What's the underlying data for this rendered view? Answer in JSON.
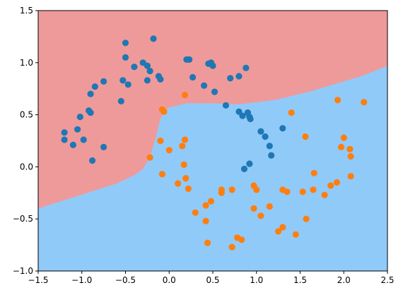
{
  "chart_data": {
    "type": "scatter",
    "title": "",
    "xlabel": "",
    "ylabel": "",
    "xlim": [
      -1.5,
      2.5
    ],
    "ylim": [
      -1.0,
      1.5
    ],
    "grid": false,
    "legend": "none",
    "xticks": [
      -1.5,
      -1.0,
      -0.5,
      0.0,
      0.5,
      1.0,
      1.5,
      2.0,
      2.5
    ],
    "yticks": [
      -1.0,
      -0.5,
      0.0,
      0.5,
      1.0,
      1.5
    ],
    "xtick_labels": [
      "−1.5",
      "−1.0",
      "−0.5",
      "0.0",
      "0.5",
      "1.0",
      "1.5",
      "2.0",
      "2.5"
    ],
    "ytick_labels": [
      "−1.0",
      "−0.5",
      "0.0",
      "0.5",
      "1.0",
      "1.5"
    ],
    "decision_regions": {
      "colors": {
        "upper": "#ef9a9a",
        "lower": "#90caf9"
      },
      "boundary": [
        [
          -1.5,
          -0.4
        ],
        [
          -1.2,
          -0.32
        ],
        [
          -0.9,
          -0.24
        ],
        [
          -0.6,
          -0.16
        ],
        [
          -0.4,
          -0.08
        ],
        [
          -0.3,
          -0.02
        ],
        [
          -0.25,
          0.05
        ],
        [
          -0.2,
          0.15
        ],
        [
          -0.15,
          0.29
        ],
        [
          -0.1,
          0.46
        ],
        [
          -0.05,
          0.54
        ],
        [
          0.0,
          0.57
        ],
        [
          0.1,
          0.59
        ],
        [
          0.2,
          0.61
        ],
        [
          0.3,
          0.61
        ],
        [
          0.5,
          0.61
        ],
        [
          0.8,
          0.6
        ],
        [
          1.0,
          0.62
        ],
        [
          1.2,
          0.64
        ],
        [
          1.4,
          0.68
        ],
        [
          1.6,
          0.72
        ],
        [
          1.8,
          0.77
        ],
        [
          2.0,
          0.82
        ],
        [
          2.2,
          0.87
        ],
        [
          2.5,
          0.97
        ]
      ]
    },
    "series": [
      {
        "color": "#1f77b4",
        "points": [
          [
            -1.2,
            0.33
          ],
          [
            -1.2,
            0.26
          ],
          [
            -1.1,
            0.21
          ],
          [
            -1.05,
            0.36
          ],
          [
            -1.02,
            0.48
          ],
          [
            -0.98,
            0.26
          ],
          [
            -0.92,
            0.54
          ],
          [
            -0.9,
            0.52
          ],
          [
            -0.88,
            0.06
          ],
          [
            -0.9,
            0.7
          ],
          [
            -0.85,
            0.77
          ],
          [
            -0.75,
            0.19
          ],
          [
            -0.75,
            0.82
          ],
          [
            -0.55,
            0.63
          ],
          [
            -0.53,
            0.83
          ],
          [
            -0.5,
            1.19
          ],
          [
            -0.5,
            1.05
          ],
          [
            -0.47,
            0.79
          ],
          [
            -0.4,
            0.96
          ],
          [
            -0.3,
            1.0
          ],
          [
            -0.25,
            0.97
          ],
          [
            -0.25,
            0.83
          ],
          [
            -0.22,
            0.92
          ],
          [
            -0.18,
            1.23
          ],
          [
            -0.12,
            0.87
          ],
          [
            -0.1,
            0.84
          ],
          [
            0.2,
            1.03
          ],
          [
            0.23,
            1.03
          ],
          [
            0.27,
            0.86
          ],
          [
            0.4,
            0.78
          ],
          [
            0.45,
            0.99
          ],
          [
            0.48,
            1.0
          ],
          [
            0.5,
            0.97
          ],
          [
            0.52,
            0.72
          ],
          [
            0.65,
            0.59
          ],
          [
            0.7,
            0.85
          ],
          [
            0.8,
            0.87
          ],
          [
            0.8,
            0.53
          ],
          [
            0.84,
            0.49
          ],
          [
            0.88,
            0.95
          ],
          [
            0.9,
            0.52
          ],
          [
            0.92,
            0.48
          ],
          [
            0.93,
            0.46
          ],
          [
            0.86,
            -0.02
          ],
          [
            0.92,
            0.03
          ],
          [
            1.05,
            0.34
          ],
          [
            1.1,
            0.29
          ],
          [
            1.15,
            0.2
          ],
          [
            1.17,
            0.11
          ],
          [
            1.3,
            0.37
          ]
        ]
      },
      {
        "color": "#ff7f0e",
        "points": [
          [
            0.18,
            0.69
          ],
          [
            -0.08,
            0.55
          ],
          [
            -0.06,
            0.53
          ],
          [
            -0.1,
            0.25
          ],
          [
            -0.08,
            -0.07
          ],
          [
            -0.22,
            0.09
          ],
          [
            0.0,
            0.16
          ],
          [
            0.1,
            -0.16
          ],
          [
            0.15,
            0.2
          ],
          [
            0.18,
            0.26
          ],
          [
            0.17,
            0.02
          ],
          [
            0.19,
            -0.11
          ],
          [
            0.22,
            -0.21
          ],
          [
            0.3,
            -0.44
          ],
          [
            0.42,
            -0.37
          ],
          [
            0.42,
            -0.52
          ],
          [
            0.44,
            -0.73
          ],
          [
            0.48,
            -0.33
          ],
          [
            0.6,
            -0.25
          ],
          [
            0.6,
            -0.22
          ],
          [
            0.72,
            -0.22
          ],
          [
            0.72,
            -0.77
          ],
          [
            0.78,
            -0.68
          ],
          [
            0.83,
            -0.7
          ],
          [
            0.97,
            -0.18
          ],
          [
            1.0,
            -0.22
          ],
          [
            0.97,
            -0.4
          ],
          [
            1.05,
            -0.47
          ],
          [
            1.15,
            -0.38
          ],
          [
            1.25,
            -0.62
          ],
          [
            1.3,
            -0.58
          ],
          [
            1.3,
            -0.22
          ],
          [
            1.35,
            -0.24
          ],
          [
            1.4,
            0.52
          ],
          [
            1.45,
            -0.65
          ],
          [
            1.53,
            -0.24
          ],
          [
            1.56,
            0.29
          ],
          [
            1.57,
            -0.5
          ],
          [
            1.65,
            -0.22
          ],
          [
            1.66,
            -0.06
          ],
          [
            1.78,
            -0.27
          ],
          [
            1.85,
            -0.18
          ],
          [
            1.92,
            -0.15
          ],
          [
            1.93,
            0.64
          ],
          [
            1.97,
            0.19
          ],
          [
            2.0,
            0.28
          ],
          [
            2.07,
            0.17
          ],
          [
            2.08,
            0.1
          ],
          [
            2.08,
            -0.09
          ],
          [
            2.23,
            0.62
          ]
        ]
      }
    ]
  }
}
